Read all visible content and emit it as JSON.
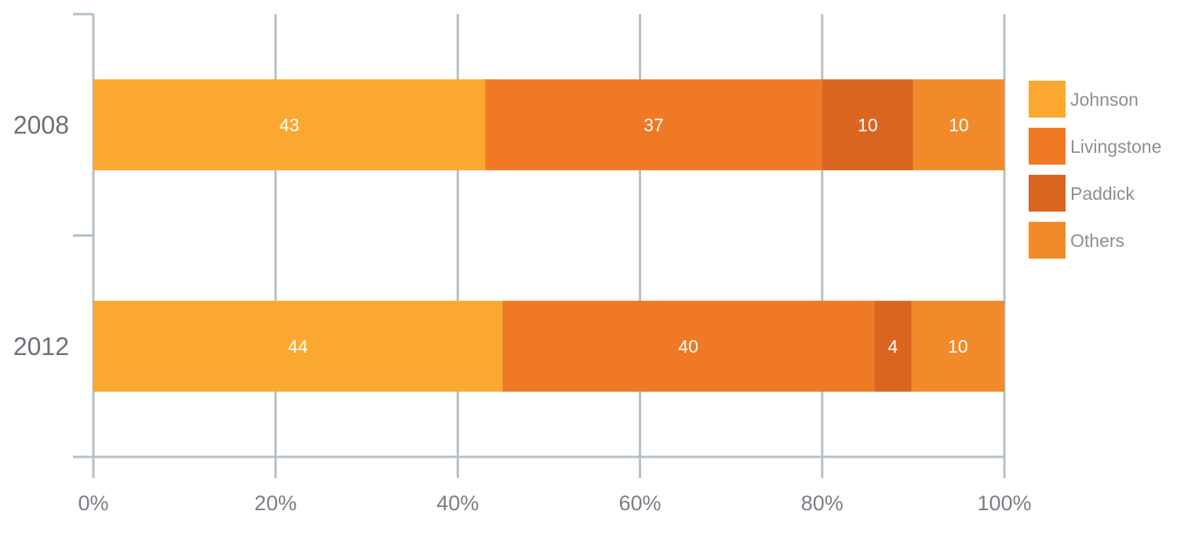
{
  "chart_data": {
    "type": "bar",
    "orientation": "horizontal",
    "stacked": "percent",
    "categories": [
      "2008",
      "2012"
    ],
    "series": [
      {
        "name": "Johnson",
        "values": [
          43,
          44
        ],
        "color": "#FBA830"
      },
      {
        "name": "Livingstone",
        "values": [
          37,
          40
        ],
        "color": "#F07925"
      },
      {
        "name": "Paddick",
        "values": [
          10,
          4
        ],
        "color": "#D96520"
      },
      {
        "name": "Others",
        "values": [
          10,
          10
        ],
        "color": "#F38A2A"
      }
    ],
    "x_ticks": [
      "0%",
      "20%",
      "40%",
      "60%",
      "80%",
      "100%"
    ],
    "xlim": [
      0,
      100
    ],
    "grid": true,
    "grid_color": "#B4C0C8",
    "legend_position": "right"
  }
}
